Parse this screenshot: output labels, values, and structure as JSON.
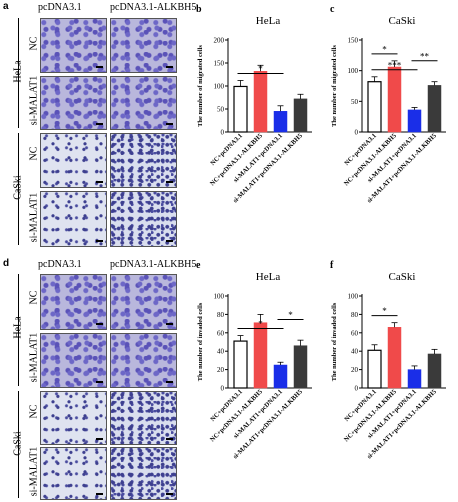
{
  "panels": {
    "a": {
      "label": "a",
      "col1": "pcDNA3.1",
      "col2": "pcDNA3.1-ALKBH5",
      "hela": "HeLa",
      "caski": "CaSki",
      "nc": "NC",
      "si": "si-MALAT1"
    },
    "d": {
      "label": "d",
      "col1": "pcDNA3.1",
      "col2": "pcDNA3.1-ALKBH5",
      "hela": "HeLa",
      "caski": "CaSki",
      "nc": "NC",
      "si": "si-MALAT1"
    }
  },
  "chart_data": [
    {
      "id": "b",
      "type": "bar",
      "panel_label": "b",
      "title": "HeLa",
      "ylabel": "The number of migrated cells",
      "categories": [
        "NC+pcDNA3.1",
        "NC+pcDNA3.1-ALKBH5",
        "si-MALAT1+pcDNA3.1",
        "si-MALAT1+pcDNA3.1-ALKBH5"
      ],
      "values": [
        99,
        132,
        45,
        72
      ],
      "errors": [
        13,
        13,
        12,
        10
      ],
      "ylim": [
        0,
        200
      ],
      "yticks": [
        0,
        50,
        100,
        150,
        200
      ],
      "colors": [
        "#ffffff",
        "#f04a4a",
        "#1a2ee8",
        "#3a3a3a"
      ],
      "sig": [
        {
          "from": 0,
          "to": 2,
          "text": "*"
        }
      ]
    },
    {
      "id": "c",
      "type": "bar",
      "panel_label": "c",
      "title": "CaSki",
      "ylabel": "The number of migrated cells",
      "categories": [
        "NC+pcDNA3.1",
        "NC+pcDNA3.1-ALKBH5",
        "si-MALAT1+pcDNA3.1",
        "si-MALAT1+pcDNA3.1-ALKBH5"
      ],
      "values": [
        82,
        106,
        36,
        76
      ],
      "errors": [
        8,
        10,
        4,
        6
      ],
      "ylim": [
        0,
        150
      ],
      "yticks": [
        0,
        50,
        100,
        150
      ],
      "colors": [
        "#ffffff",
        "#f04a4a",
        "#1a2ee8",
        "#3a3a3a"
      ],
      "sig": [
        {
          "from": 0,
          "to": 2,
          "text": "***"
        },
        {
          "from": 0,
          "to": 1,
          "text": "*"
        },
        {
          "from": 2,
          "to": 3,
          "text": "**"
        }
      ]
    },
    {
      "id": "e",
      "type": "bar",
      "panel_label": "e",
      "title": "HeLa",
      "ylabel": "The number of invaded cells",
      "categories": [
        "NC+pcDNA3.1",
        "NC+pcDNA3.1-ALKBH5",
        "si-MALAT1+pcDNA3.1",
        "si-MALAT1+pcDNA3.1-ALKBH5"
      ],
      "values": [
        51,
        71,
        25,
        46
      ],
      "errors": [
        6,
        9,
        3,
        6
      ],
      "ylim": [
        0,
        100
      ],
      "yticks": [
        0,
        20,
        40,
        60,
        80,
        100
      ],
      "colors": [
        "#ffffff",
        "#f04a4a",
        "#1a2ee8",
        "#3a3a3a"
      ],
      "sig": [
        {
          "from": 0,
          "to": 2,
          "text": "*"
        },
        {
          "from": 2,
          "to": 3,
          "text": "*"
        }
      ]
    },
    {
      "id": "f",
      "type": "bar",
      "panel_label": "f",
      "title": "CaSki",
      "ylabel": "The number of invaded cells",
      "categories": [
        "NC+pcDNA3.1",
        "NC+pcDNA3.1-ALKBH5",
        "si-MALAT1+pcDNA3.1",
        "si-MALAT1+pcDNA3.1-ALKBH5"
      ],
      "values": [
        41,
        66,
        20,
        37
      ],
      "errors": [
        6,
        5,
        4,
        5
      ],
      "ylim": [
        0,
        100
      ],
      "yticks": [
        0,
        20,
        40,
        60,
        80,
        100
      ],
      "colors": [
        "#ffffff",
        "#f04a4a",
        "#1a2ee8",
        "#3a3a3a"
      ],
      "sig": [
        {
          "from": 0,
          "to": 1,
          "text": "*"
        }
      ]
    }
  ]
}
